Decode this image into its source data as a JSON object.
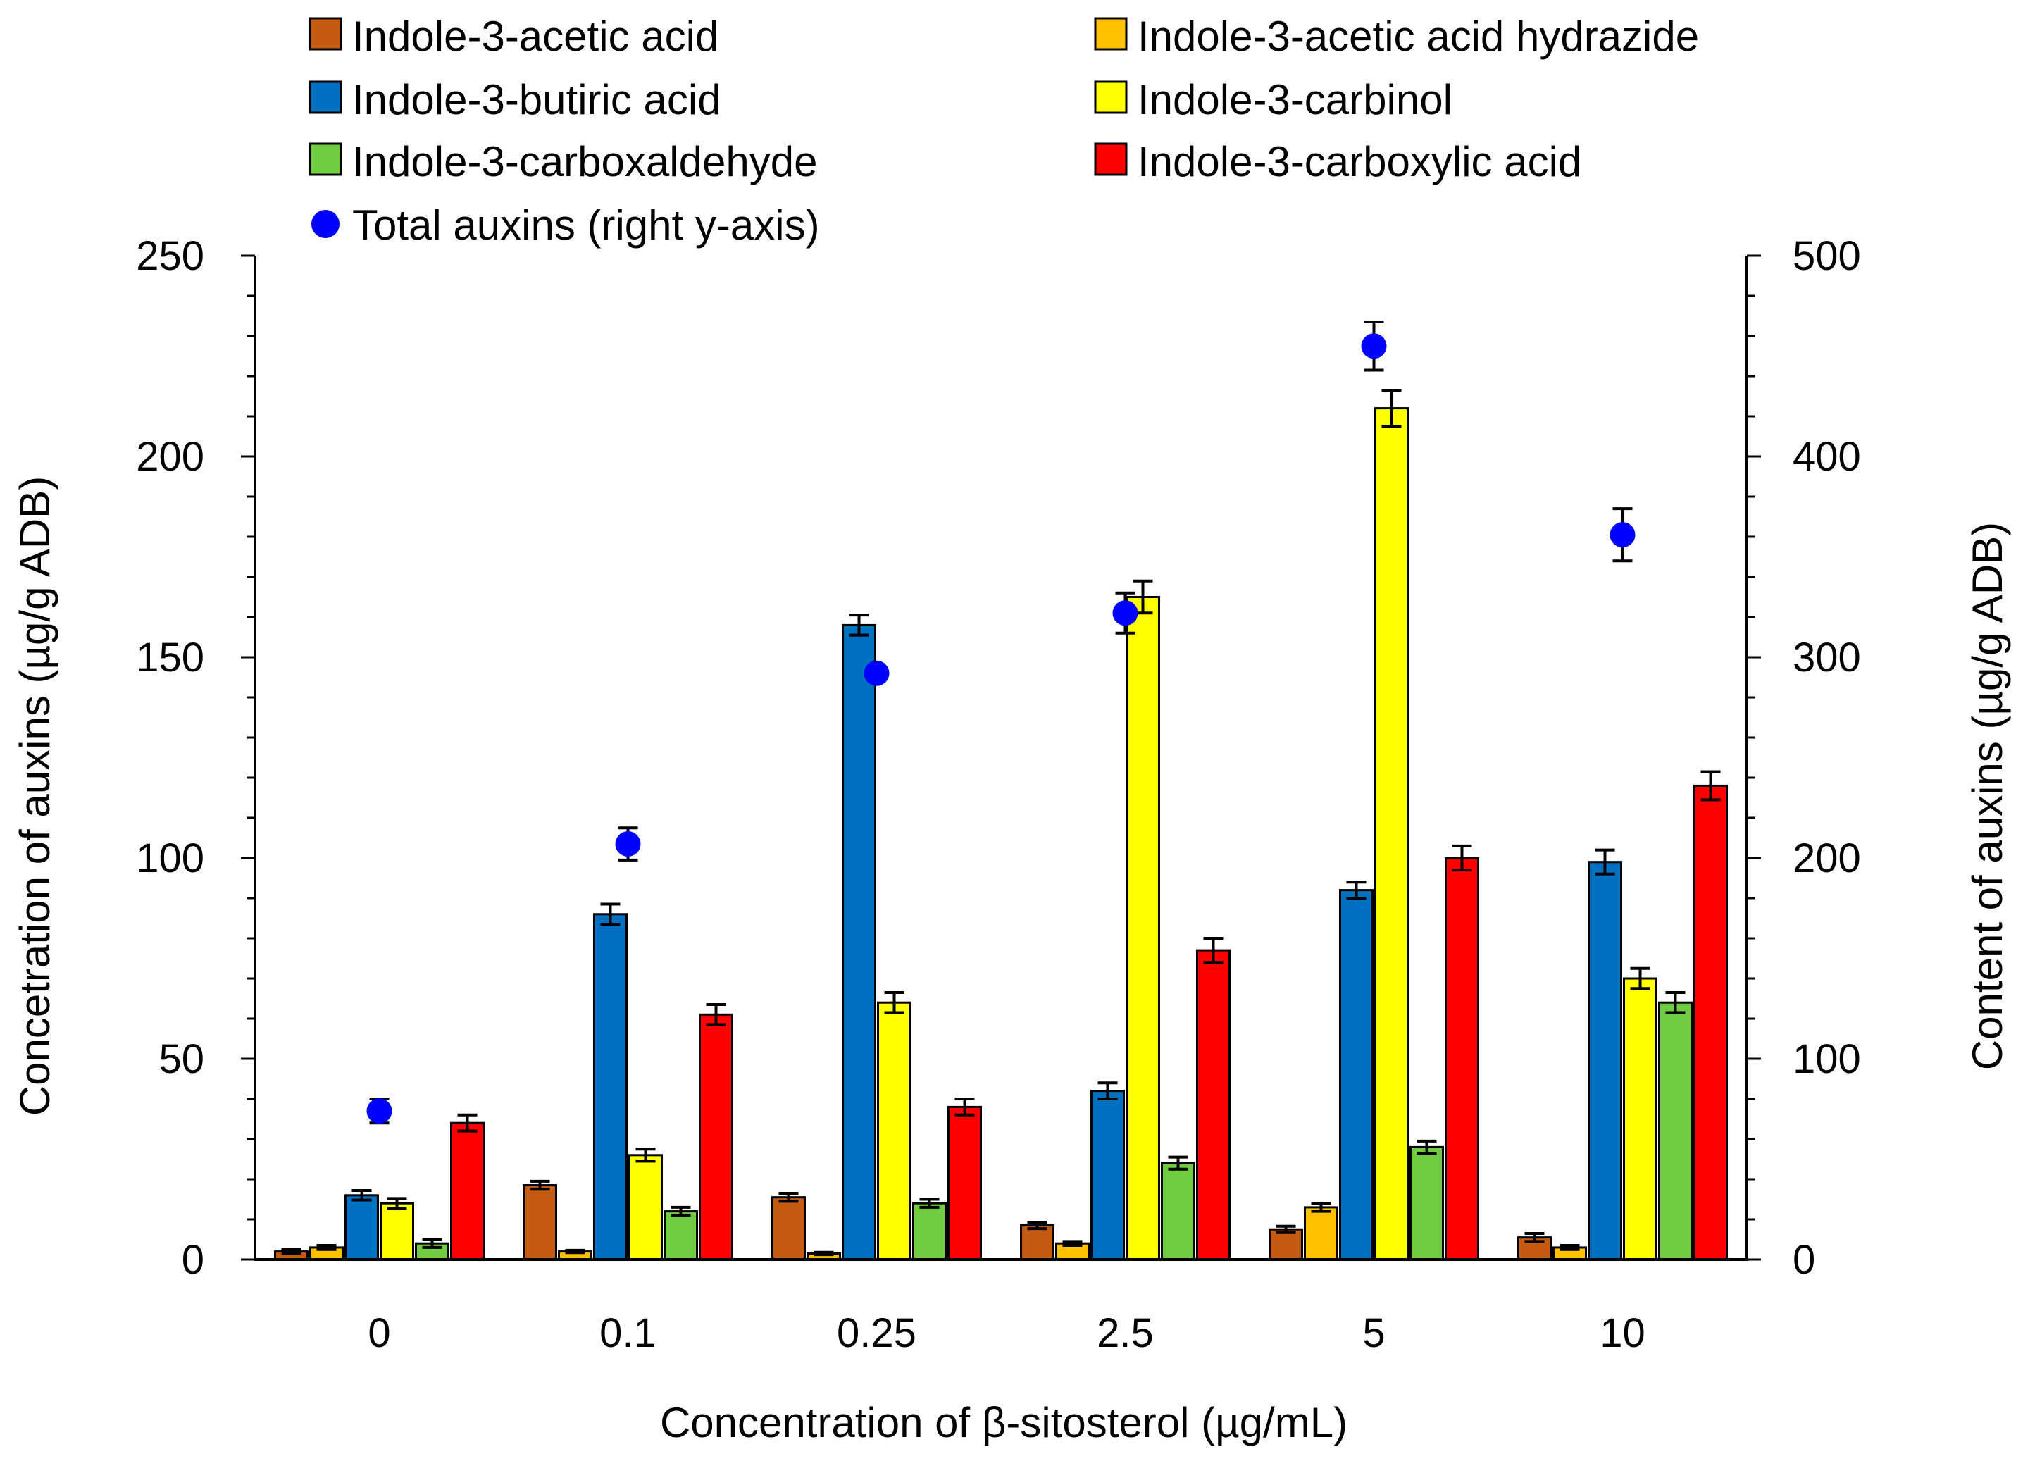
{
  "chart_data": {
    "type": "bar",
    "title": "",
    "xlabel": "Concentration of β-sitosterol (µg/mL)",
    "ylabel": "Concetration of auxins (µg/g ADB)",
    "y2label": "Content of auxins (µg/g ADB)",
    "categories": [
      "0",
      "0.1",
      "0.25",
      "2.5",
      "5",
      "10"
    ],
    "ylim": [
      0,
      250
    ],
    "y2lim": [
      0,
      500
    ],
    "yticks": [
      "0",
      "50",
      "100",
      "150",
      "200",
      "250"
    ],
    "y2ticks": [
      "0",
      "100",
      "200",
      "300",
      "400",
      "500"
    ],
    "grid": false,
    "legend_position": "top",
    "series": [
      {
        "name": "Indole-3-acetic acid",
        "color": "#c55a11",
        "values": [
          2,
          18.5,
          15.5,
          8.5,
          7.5,
          5.5
        ],
        "errors": [
          0.5,
          1,
          1,
          0.8,
          0.8,
          1
        ]
      },
      {
        "name": "Indole-3-acetic acid hydrazide",
        "color": "#ffc000",
        "values": [
          3,
          2,
          1.5,
          4,
          13,
          3
        ],
        "errors": [
          0.5,
          0.3,
          0.3,
          0.5,
          1,
          0.5
        ]
      },
      {
        "name": "Indole-3-butiric acid",
        "color": "#0070c0",
        "values": [
          16,
          86,
          158,
          42,
          92,
          99
        ],
        "errors": [
          1.2,
          2.5,
          2.5,
          2,
          2,
          3
        ]
      },
      {
        "name": "Indole-3-carbinol",
        "color": "#ffff00",
        "values": [
          14,
          26,
          64,
          165,
          212,
          70
        ],
        "errors": [
          1.2,
          1.5,
          2.5,
          4,
          4.5,
          2.5
        ]
      },
      {
        "name": "Indole-3-carboxaldehyde",
        "color": "#70cc40",
        "values": [
          4,
          12,
          14,
          24,
          28,
          64
        ],
        "errors": [
          1,
          1,
          1,
          1.5,
          1.5,
          2.5
        ]
      },
      {
        "name": "Indole-3-carboxylic acid",
        "color": "#ff0000",
        "values": [
          34,
          61,
          38,
          77,
          100,
          118
        ],
        "errors": [
          2,
          2.5,
          2,
          3,
          3,
          3.5
        ]
      }
    ],
    "scatter_series": {
      "name": "Total auxins (right y-axis)",
      "axis": "right",
      "color": "#0000ff",
      "values": [
        74,
        207,
        292,
        322,
        455,
        361
      ],
      "errors": [
        6,
        8,
        3,
        10,
        12,
        13
      ]
    }
  }
}
